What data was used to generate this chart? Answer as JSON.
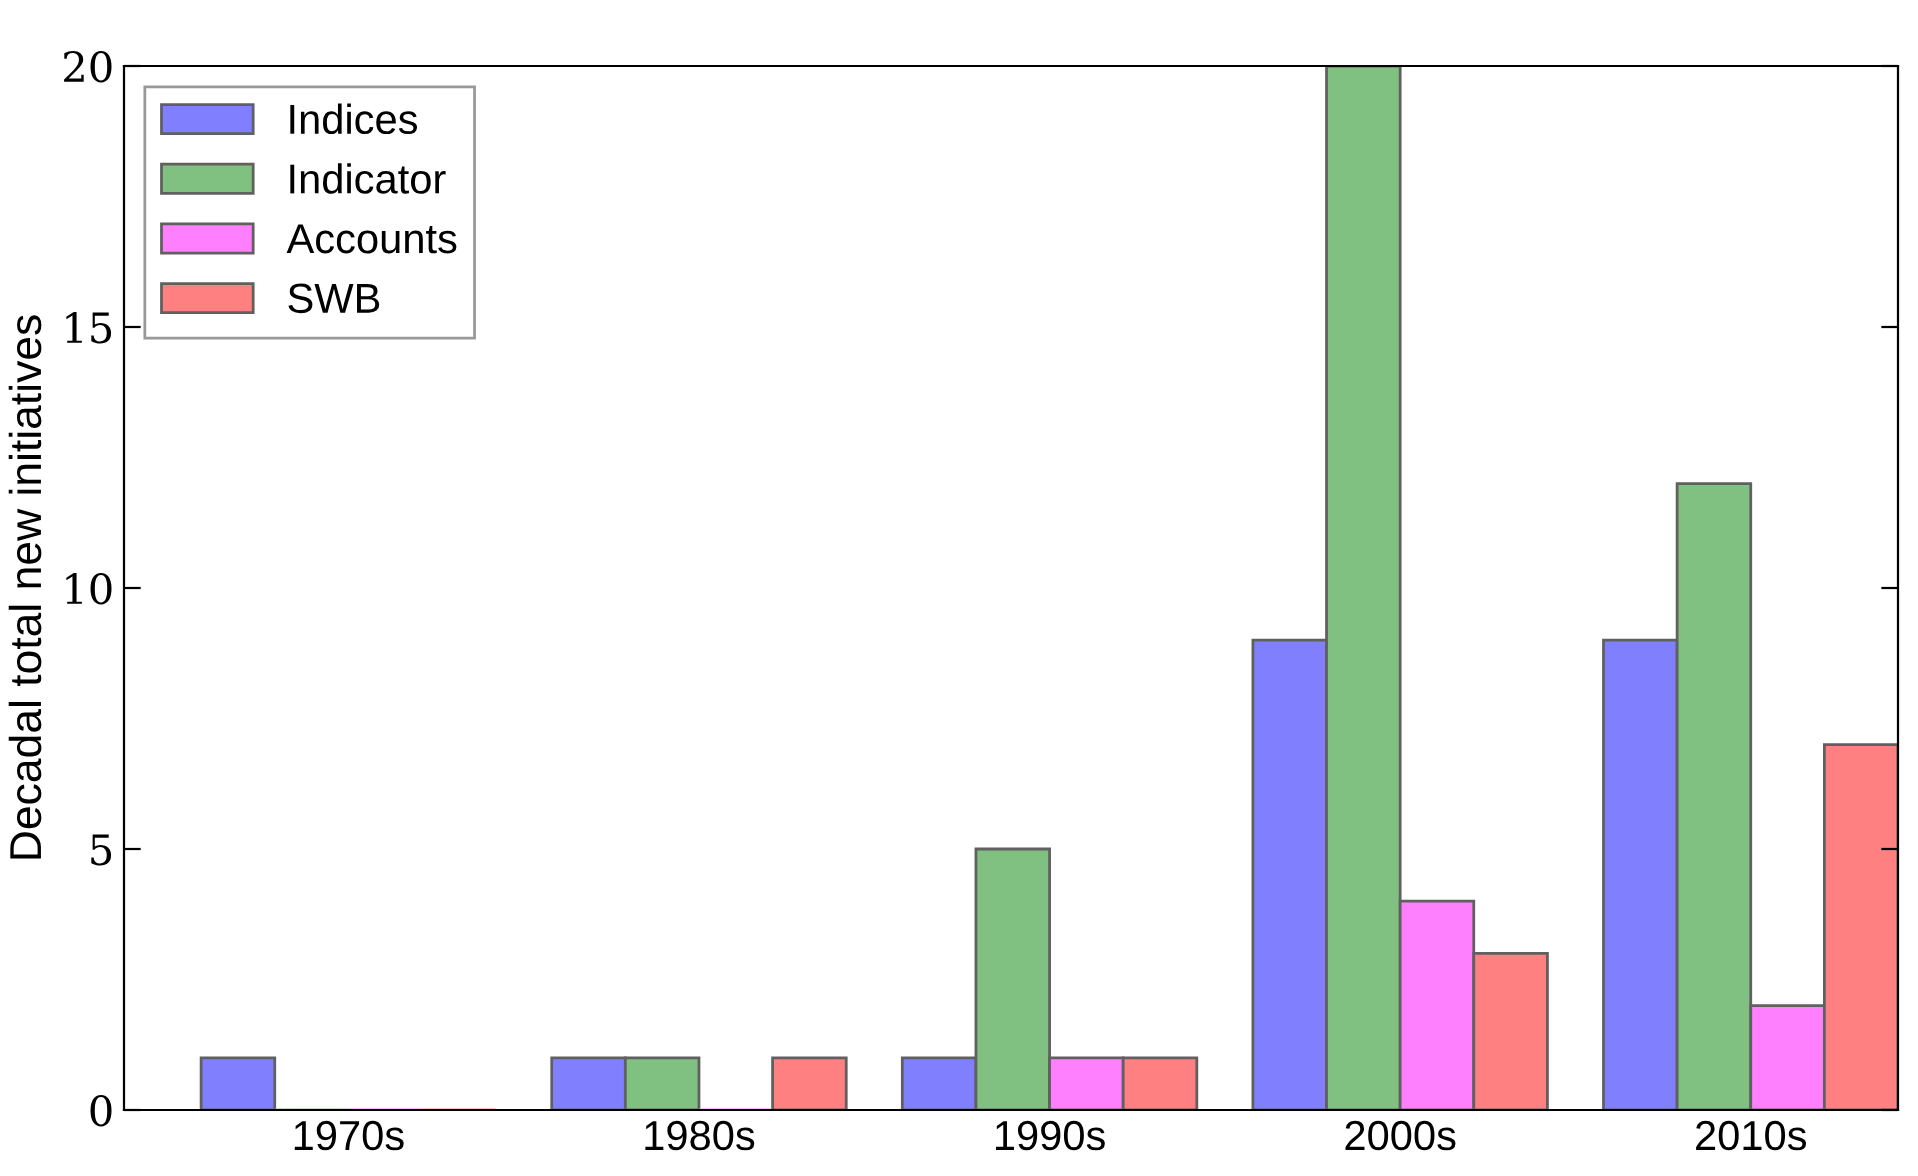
{
  "chart_data": {
    "type": "bar",
    "ylabel": "Decadal total new initiatives",
    "categories": [
      "1970s",
      "1980s",
      "1990s",
      "2000s",
      "2010s"
    ],
    "series": [
      {
        "name": "Indices",
        "color": "#8080ff",
        "values": [
          1,
          1,
          1,
          9,
          9
        ]
      },
      {
        "name": "Indicator",
        "color": "#80c080",
        "values": [
          0,
          1,
          5,
          20,
          12
        ]
      },
      {
        "name": "Accounts",
        "color": "#ff80ff",
        "values": [
          0,
          0,
          1,
          4,
          2
        ]
      },
      {
        "name": "SWB",
        "color": "#ff8080",
        "values": [
          0,
          1,
          1,
          3,
          7
        ]
      }
    ],
    "ylim": [
      0,
      20
    ],
    "yticks": [
      0,
      5,
      10,
      15,
      20
    ],
    "grid": false,
    "legend": "top left"
  }
}
